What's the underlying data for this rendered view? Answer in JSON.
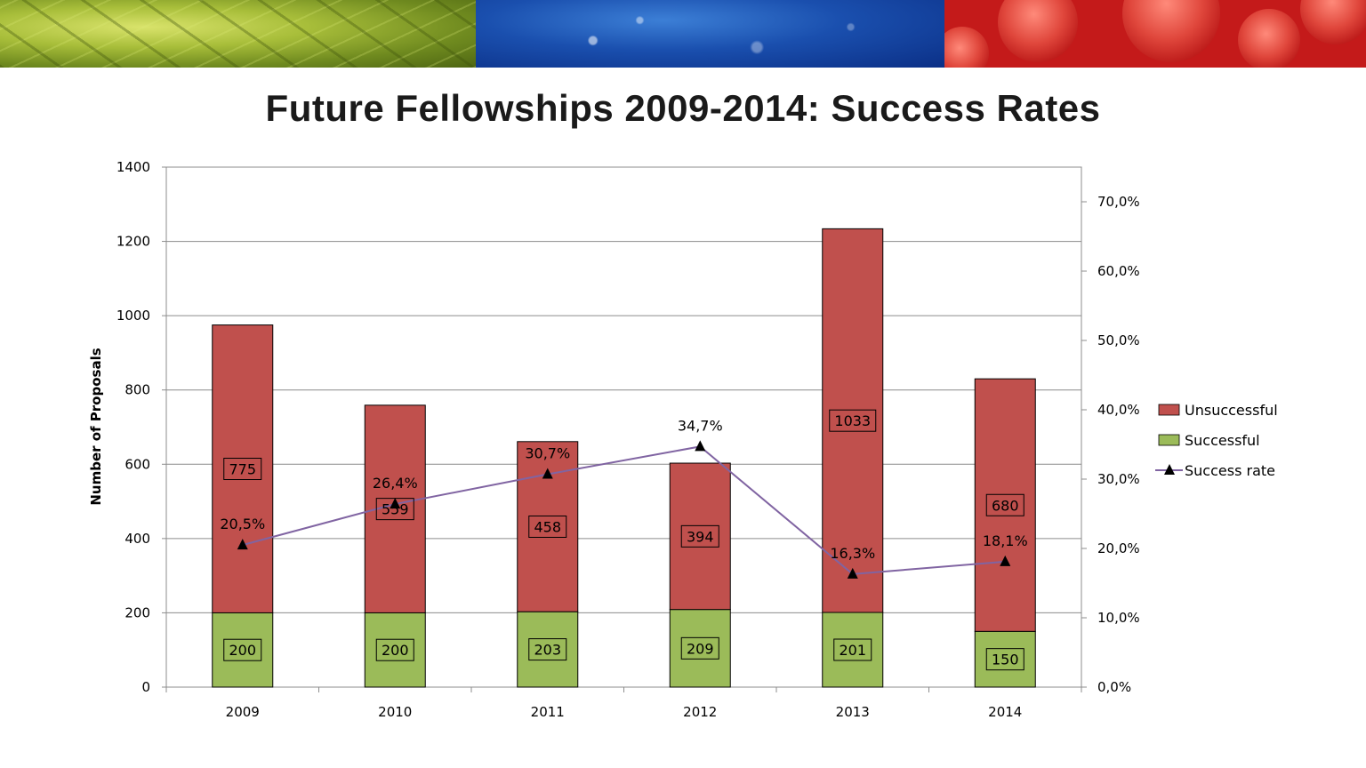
{
  "title": "Future Fellowships 2009-2014: Success Rates",
  "chart_data": {
    "type": "bar",
    "stacked": true,
    "categories": [
      "2009",
      "2010",
      "2011",
      "2012",
      "2013",
      "2014"
    ],
    "series": [
      {
        "name": "Successful",
        "type": "bar",
        "color": "#9bbb59",
        "values": [
          200,
          200,
          203,
          209,
          201,
          150
        ],
        "labels": [
          "200",
          "200",
          "203",
          "209",
          "201",
          "150"
        ]
      },
      {
        "name": "Unsuccessful",
        "type": "bar",
        "color": "#c0504d",
        "values": [
          775,
          559,
          458,
          394,
          1033,
          680
        ],
        "labels": [
          "775",
          "559",
          "458",
          "394",
          "1033",
          "680"
        ]
      },
      {
        "name": "Success rate",
        "type": "line",
        "axis": "secondary",
        "color": "#8064a2",
        "values": [
          20.5,
          26.4,
          30.7,
          34.7,
          16.3,
          18.1
        ],
        "labels": [
          "20,5%",
          "26,4%",
          "30,7%",
          "34,7%",
          "16,3%",
          "18,1%"
        ]
      }
    ],
    "ylabel": "Number of Proposals",
    "ylim": [
      0,
      1400
    ],
    "yticks": [
      "0",
      "200",
      "400",
      "600",
      "800",
      "1000",
      "1200",
      "1400"
    ],
    "y2lim": [
      0,
      75
    ],
    "y2ticks": [
      "0,0%",
      "10,0%",
      "20,0%",
      "30,0%",
      "40,0%",
      "50,0%",
      "60,0%",
      "70,0%"
    ],
    "grid": true,
    "legend": {
      "position": "right",
      "entries": [
        "Unsuccessful",
        "Successful",
        "Success rate"
      ]
    }
  }
}
